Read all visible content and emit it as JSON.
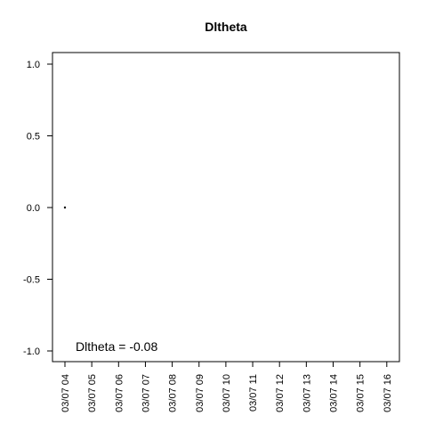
{
  "chart_data": {
    "type": "scatter",
    "title": "Dltheta",
    "xlabel": "",
    "ylabel": "",
    "x_tick_labels": [
      "03/07 04",
      "03/07 05",
      "03/07 06",
      "03/07 07",
      "03/07 08",
      "03/07 09",
      "03/07 10",
      "03/07 11",
      "03/07 12",
      "03/07 13",
      "03/07 14",
      "03/07 15",
      "03/07 16"
    ],
    "y_ticks": [
      1.0,
      0.5,
      0.0,
      -0.5,
      -1.0
    ],
    "y_tick_labels": [
      "1.0",
      "0.5",
      "0.0",
      "-0.5",
      "-1.0"
    ],
    "ylim": [
      -1.0,
      1.0
    ],
    "xlim": [
      "03/07 04",
      "03/07 16"
    ],
    "points": [
      {
        "x": "03/07 04",
        "y": 0.0
      }
    ],
    "annotation": "Dltheta = -0.08",
    "grid": false,
    "colors": {
      "axis": "#000000",
      "point": "#000000",
      "background": "#ffffff"
    }
  }
}
